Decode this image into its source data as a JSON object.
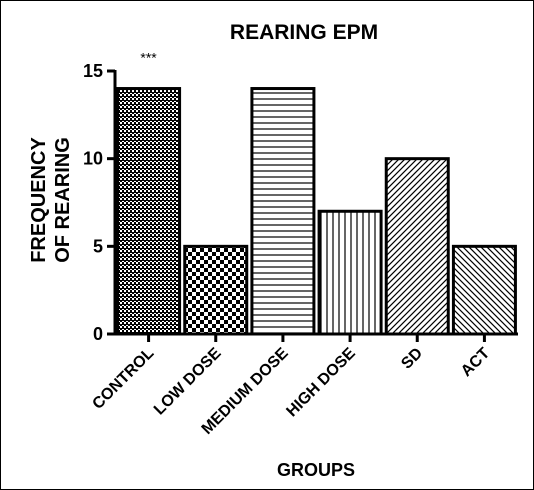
{
  "chart_data": {
    "type": "bar",
    "title": "REARING EPM",
    "ylabel_lines": [
      "FREQUENCY",
      "OF REARING"
    ],
    "xlabel": "GROUPS",
    "categories": [
      "CONTROL",
      "LOW DOSE",
      "MEDIUM DOSE",
      "HIGH DOSE",
      "SD",
      "ACT"
    ],
    "values": [
      14,
      5,
      14,
      7,
      10,
      5
    ],
    "ylim": [
      0,
      15
    ],
    "yticks": [
      0,
      5,
      10,
      15
    ],
    "annotations": [
      {
        "category": "CONTROL",
        "text": "***"
      }
    ],
    "patterns": [
      "crosshatch-fine",
      "checker",
      "horizontal-lines",
      "vertical-lines",
      "diagonal-forward",
      "diagonal-backward"
    ],
    "grid": false,
    "legend": "none"
  }
}
